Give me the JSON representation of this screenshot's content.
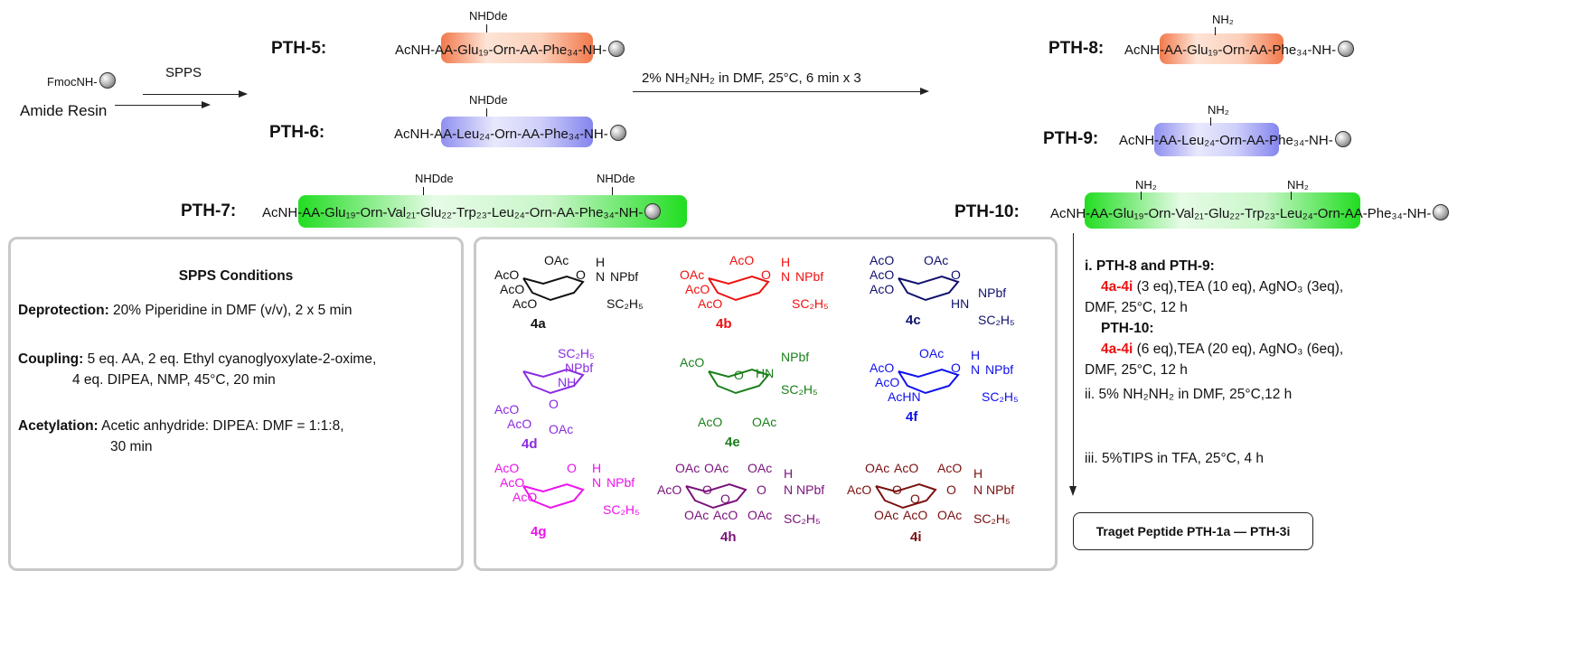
{
  "start": {
    "reagent": "FmocNH-",
    "name": "Amide Resin"
  },
  "step1": {
    "label": "SPPS"
  },
  "step2": {
    "label": "2% NH₂NH₂ in DMF, 25°C, 6 min x 3"
  },
  "peptides_protected": [
    {
      "id": "PTH-5:",
      "seq": "AcNH-AA-Glu₁₉-Orn-AA-Phe₃₄-NH-",
      "side": [
        "NHDde"
      ],
      "color": "#f2794c"
    },
    {
      "id": "PTH-6:",
      "seq": "AcNH-AA-Leu₂₄-Orn-AA-Phe₃₄-NH-",
      "side": [
        "NHDde"
      ],
      "color": "#8f8ff0"
    },
    {
      "id": "PTH-7:",
      "seq": "AcNH-AA-Glu₁₉-Orn-Val₂₁-Glu₂₂-Trp₂₃-Leu₂₄-Orn-AA-Phe₃₄-NH-",
      "side": [
        "NHDde",
        "NHDde"
      ],
      "color": "#22dd22"
    }
  ],
  "peptides_deprotected": [
    {
      "id": "PTH-8:",
      "seq": "AcNH-AA-Glu₁₉-Orn-AA-Phe₃₄-NH-",
      "side": [
        "NH₂"
      ]
    },
    {
      "id": "PTH-9:",
      "seq": "AcNH-AA-Leu₂₄-Orn-AA-Phe₃₄-NH-",
      "side": [
        "NH₂"
      ]
    },
    {
      "id": "PTH-10:",
      "seq": "AcNH-AA-Glu₁₉-Orn-Val₂₁-Glu₂₂-Trp₂₃-Leu₂₄-Orn-AA-Phe₃₄-NH-",
      "side": [
        "NH₂",
        "NH₂"
      ]
    }
  ],
  "spps_conditions": {
    "title": "SPPS Conditions",
    "items": [
      {
        "label": "Deprotection:",
        "text": " 20% Piperidine in DMF (v/v), 2 x 5 min",
        "cont": ""
      },
      {
        "label": "Coupling:",
        "text": " 5 eq. AA, 2 eq. Ethyl cyanoglyoxylate-2-oxime,",
        "cont": "4 eq. DIPEA, NMP, 45°C, 20 min"
      },
      {
        "label": "Acetylation:",
        "text": " Acetic anhydride: DIPEA: DMF = 1:1:8,",
        "cont": "30 min"
      }
    ]
  },
  "compounds": [
    {
      "label": "4a",
      "color": "#111111",
      "groups": [
        "OAc",
        "AcO",
        "AcO",
        "AcO",
        "O",
        "H",
        "N",
        "NPbf",
        "SC₂H₅"
      ]
    },
    {
      "label": "4b",
      "color": "#ee1111",
      "groups": [
        "AcO",
        "OAc",
        "AcO",
        "AcO",
        "O",
        "H",
        "N",
        "NPbf",
        "SC₂H₅"
      ]
    },
    {
      "label": "4c",
      "color": "#10106e",
      "groups": [
        "AcO",
        "AcO",
        "AcO",
        "OAc",
        "O",
        "HN",
        "NPbf",
        "SC₂H₅"
      ]
    },
    {
      "label": "4d",
      "color": "#8a2be2",
      "groups": [
        "SC₂H₅",
        "NPbf",
        "NH",
        "O",
        "AcO",
        "AcO",
        "OAc"
      ]
    },
    {
      "label": "4e",
      "color": "#1a7f1a",
      "groups": [
        "AcO",
        "O",
        "HN",
        "NPbf",
        "SC₂H₅",
        "AcO",
        "OAc"
      ]
    },
    {
      "label": "4f",
      "color": "#1010ee",
      "groups": [
        "OAc",
        "AcO",
        "AcO",
        "AcHN",
        "O",
        "H",
        "N",
        "NPbf",
        "SC₂H₅"
      ]
    },
    {
      "label": "4g",
      "color": "#ee11ee",
      "groups": [
        "AcO",
        "AcO",
        "AcO",
        "O",
        "H",
        "N",
        "NPbf",
        "SC₂H₅"
      ]
    },
    {
      "label": "4h",
      "color": "#7a127a",
      "groups": [
        "OAc",
        "OAc",
        "OAc",
        "AcO",
        "O",
        "O",
        "OAc",
        "AcO",
        "O",
        "OAc",
        "H",
        "N",
        "NPbf",
        "SC₂H₅"
      ]
    },
    {
      "label": "4i",
      "color": "#7a1010",
      "groups": [
        "OAc",
        "AcO",
        "AcO",
        "AcO",
        "O",
        "O",
        "OAc",
        "AcO",
        "O",
        "OAc",
        "H",
        "N",
        "NPbf",
        "SC₂H₅"
      ]
    }
  ],
  "step3": {
    "i_title": "i. PTH-8 and PTH-9:",
    "i_reagent": "4a-4i",
    "i_line": " (3 eq),TEA (10 eq), AgNO₃ (3eq),",
    "i_line2": "DMF, 25°C, 12 h",
    "i_title2": "PTH-10:",
    "i_reagent2": "4a-4i",
    "i_line3": " (6 eq),TEA (20 eq), AgNO₃ (6eq),",
    "i_line4": "DMF, 25°C, 12 h",
    "ii": "ii. 5% NH₂NH₂ in DMF, 25°C,12 h",
    "iii": "iii. 5%TIPS in TFA, 25°C, 4 h"
  },
  "product": {
    "label": "Traget Peptide PTH-1a — PTH-3i"
  }
}
